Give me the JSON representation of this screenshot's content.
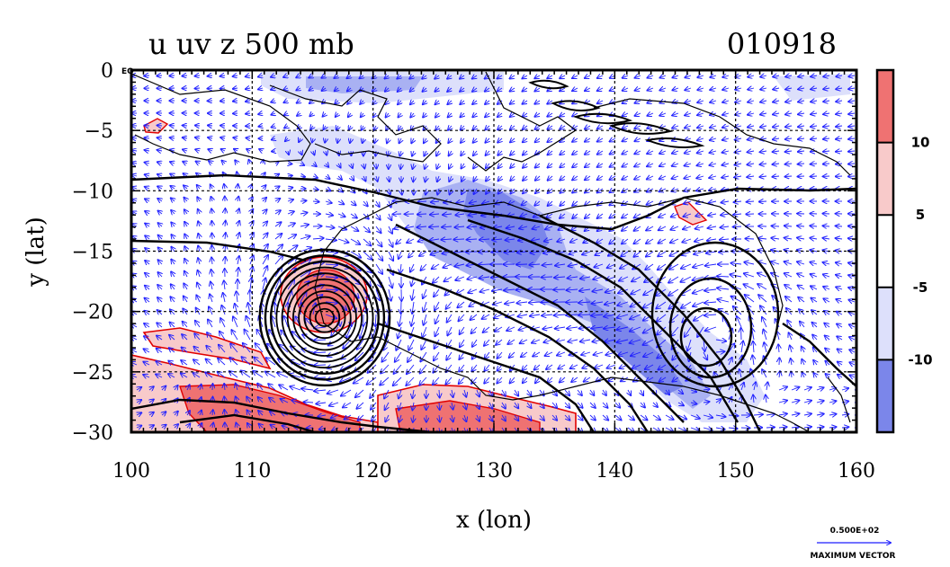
{
  "title_left": "u uv z 500 mb",
  "title_right": "010918",
  "corner_label": "EQ",
  "colors": {
    "blue_dark": "#7b86ea",
    "blue_mid": "#a9b1f2",
    "blue_light": "#dde0fb",
    "red_dark": "#ef7272",
    "red_light": "#f8caca",
    "vector": "#1f1fff",
    "red_line": "#e00000"
  },
  "chart_data": {
    "type": "heatmap",
    "xlabel": "x (lon)",
    "ylabel": "y (lat)",
    "xlim": [
      100,
      160
    ],
    "ylim": [
      -30,
      0
    ],
    "x_ticks": [
      100,
      110,
      120,
      130,
      140,
      150,
      160
    ],
    "y_ticks": [
      0,
      -5,
      -10,
      -15,
      -20,
      -25,
      -30
    ],
    "grid": true,
    "colorbar": {
      "placement": "right",
      "tick_labels": [
        "10",
        "5",
        "-5",
        "-10"
      ],
      "levels": [
        -15,
        -10,
        -5,
        5,
        10,
        15
      ]
    },
    "cyclone_center": [
      116,
      -20.5
    ],
    "anticyclone_center": [
      148.5,
      -21.5
    ],
    "vector_legend": {
      "value_label": "0.500E+02",
      "caption": "MAXIMUM VECTOR"
    }
  }
}
